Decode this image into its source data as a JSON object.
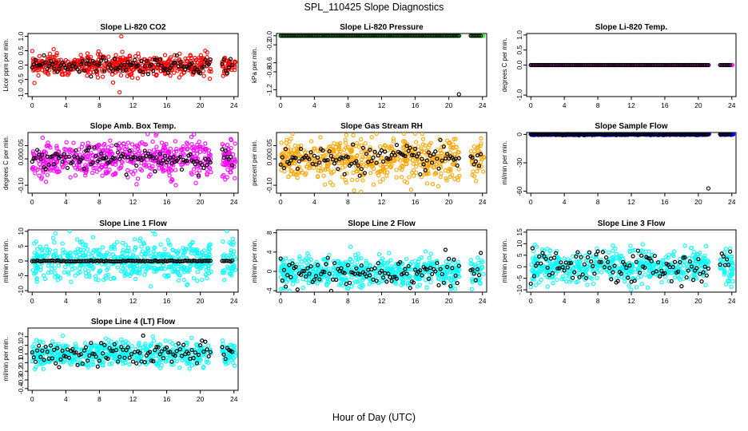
{
  "title": "SPL_110425  Slope Diagnostics",
  "xlabel": "Hour of Day (UTC)",
  "chart_data": [
    {
      "type": "scatter",
      "title": "Slope Li-820 CO2",
      "ylabel": "Licor ppm per min.",
      "ylim": [
        -1.1,
        1.1
      ],
      "yticks": [
        "-1.0",
        "-0.5",
        "0.0",
        "0.5",
        "1.0"
      ],
      "ytick_values": [
        -1.0,
        -0.5,
        0.0,
        0.5,
        1.0
      ],
      "series_color": "#ff0000",
      "noise": 0.18,
      "outliers": [
        [
          10.6,
          1.0
        ],
        [
          10.4,
          -0.95
        ]
      ],
      "black_sd": 0.14,
      "xlim": [
        -0.5,
        24.5
      ],
      "xticks": [
        0,
        4,
        8,
        12,
        16,
        20,
        24
      ]
    },
    {
      "type": "scatter",
      "title": "Slope Li-820 Pressure",
      "ylabel": "kPa per min.",
      "ylim": [
        -1.35,
        0.05
      ],
      "yticks": [
        "0.0",
        "-0.2",
        "-0.6",
        "-0.8",
        "-1.2"
      ],
      "ytick_values": [
        0.0,
        -0.2,
        -0.6,
        -0.8,
        -1.2
      ],
      "series_color": "#00ff00",
      "noise": 0.0,
      "outliers": [
        [
          21.2,
          -1.3
        ]
      ],
      "black_sd": 0.0,
      "xlim": [
        -0.5,
        24.5
      ],
      "xticks": [
        0,
        4,
        8,
        12,
        16,
        20,
        24
      ]
    },
    {
      "type": "scatter",
      "title": "Slope Li-820 Temp.",
      "ylabel": "degrees C per min.",
      "ylim": [
        -1.05,
        1.05
      ],
      "yticks": [
        "-1.0",
        "0.0",
        "0.5",
        "1.0"
      ],
      "ytick_values": [
        -1.0,
        0.0,
        0.5,
        1.0
      ],
      "series_color": "#ff00ff",
      "noise": 0.0,
      "outliers": [],
      "black_sd": 0.0,
      "xlim": [
        -0.5,
        24.5
      ],
      "xticks": [
        0,
        4,
        8,
        12,
        16,
        20,
        24
      ]
    },
    {
      "type": "scatter",
      "title": "Slope Amb. Box Temp.",
      "ylabel": "degrees C per min.",
      "ylim": [
        -0.13,
        0.1
      ],
      "yticks": [
        "-0.10",
        "0.00",
        "0.05"
      ],
      "ytick_values": [
        -0.1,
        0.0,
        0.05
      ],
      "series_color": "#ff00ff",
      "noise": 0.035,
      "outliers": [],
      "black_sd": 0.02,
      "xlim": [
        -0.5,
        24.5
      ],
      "xticks": [
        0,
        4,
        8,
        12,
        16,
        20,
        24
      ]
    },
    {
      "type": "scatter",
      "title": "Slope Gas Stream RH",
      "ylabel": "percent per min.",
      "ylim": [
        -0.13,
        0.1
      ],
      "yticks": [
        "-0.10",
        "0.00",
        "0.05"
      ],
      "ytick_values": [
        -0.1,
        0.0,
        0.05
      ],
      "series_color": "#ffa500",
      "noise": 0.04,
      "outliers": [],
      "black_sd": 0.025,
      "xlim": [
        -0.5,
        24.5
      ],
      "xticks": [
        0,
        4,
        8,
        12,
        16,
        20,
        24
      ]
    },
    {
      "type": "scatter",
      "title": "Slope Sample Flow",
      "ylabel": "ml/min per min.",
      "ylim": [
        -62,
        2
      ],
      "yticks": [
        "0",
        "-30",
        "-60"
      ],
      "ytick_values": [
        0,
        -30,
        -60
      ],
      "series_color": "#0000ff",
      "noise": 0.3,
      "outliers": [
        [
          21.2,
          -57
        ]
      ],
      "black_sd": 0.3,
      "xlim": [
        -0.5,
        24.5
      ],
      "xticks": [
        0,
        4,
        8,
        12,
        16,
        20,
        24
      ]
    },
    {
      "type": "scatter",
      "title": "Slope Line 1 Flow",
      "ylabel": "ml/min per min.",
      "ylim": [
        -10.5,
        10.5
      ],
      "yticks": [
        "-10",
        "-5",
        "0",
        "5",
        "10"
      ],
      "ytick_values": [
        -10,
        -5,
        0,
        5,
        10
      ],
      "series_color": "#00ffff",
      "noise": 3.2,
      "outliers": [],
      "black_sd": 0.1,
      "xlim": [
        -0.5,
        24.5
      ],
      "xticks": [
        0,
        4,
        8,
        12,
        16,
        20,
        24
      ]
    },
    {
      "type": "scatter",
      "title": "Slope Line 2 Flow",
      "ylabel": "ml/min per min.",
      "ylim": [
        -4.3,
        8.6
      ],
      "yticks": [
        "-4",
        "0",
        "4",
        "8"
      ],
      "ytick_values": [
        -4,
        0,
        4,
        8
      ],
      "series_color": "#00ffff",
      "noise": 1.6,
      "outliers": [],
      "black_sd": 1.5,
      "xlim": [
        -0.5,
        24.5
      ],
      "xticks": [
        0,
        4,
        8,
        12,
        16,
        20,
        24
      ]
    },
    {
      "type": "scatter",
      "title": "Slope Line 3 Flow",
      "ylabel": "ml/min per min.",
      "ylim": [
        -11,
        16
      ],
      "yticks": [
        "-10",
        "-5",
        "0",
        "5",
        "10",
        "15"
      ],
      "ytick_values": [
        -10,
        -5,
        0,
        5,
        10,
        15
      ],
      "series_color": "#00ffff",
      "noise": 3.5,
      "outliers": [],
      "black_sd": 3.5,
      "xlim": [
        -0.5,
        24.5
      ],
      "xticks": [
        0,
        4,
        8,
        12,
        16,
        20,
        24
      ]
    },
    {
      "type": "scatter",
      "title": "Slope Line 4 (LT) Flow",
      "ylabel": "ml/min per min.",
      "ylim": [
        -0.42,
        0.3
      ],
      "yticks": [
        "-0.4",
        "-0.3",
        "-0.2",
        "-0.1",
        "0.0",
        "0.1",
        "0.2"
      ],
      "ytick_values": [
        -0.4,
        -0.3,
        -0.2,
        -0.1,
        0.0,
        0.1,
        0.2
      ],
      "series_color": "#00ffff",
      "noise": 0.075,
      "outliers": [],
      "black_sd": 0.07,
      "xlim": [
        -0.5,
        24.5
      ],
      "xticks": [
        0,
        4,
        8,
        12,
        16,
        20,
        24
      ]
    }
  ]
}
